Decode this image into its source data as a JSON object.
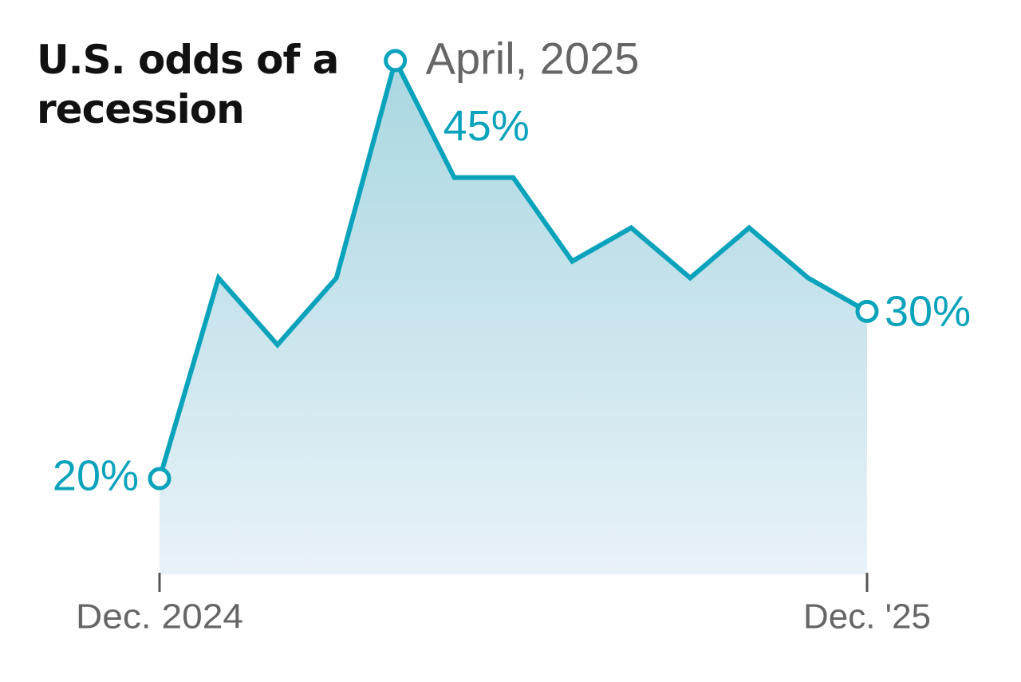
{
  "chart_data": {
    "type": "line",
    "title": "U.S. odds of a recession",
    "annotation": "April, 2025",
    "categories": [
      "Dec. 2024",
      null,
      null,
      null,
      null,
      null,
      null,
      null,
      null,
      null,
      null,
      null,
      "Dec. '25"
    ],
    "values": [
      20,
      32,
      28,
      32,
      45,
      38,
      38,
      33,
      35,
      32,
      35,
      32,
      30
    ],
    "value_labels": [
      "20%",
      null,
      null,
      null,
      "45%",
      null,
      null,
      null,
      null,
      null,
      null,
      null,
      "30%"
    ],
    "color": "#0aa3bb",
    "ylim": [
      14,
      47
    ]
  }
}
